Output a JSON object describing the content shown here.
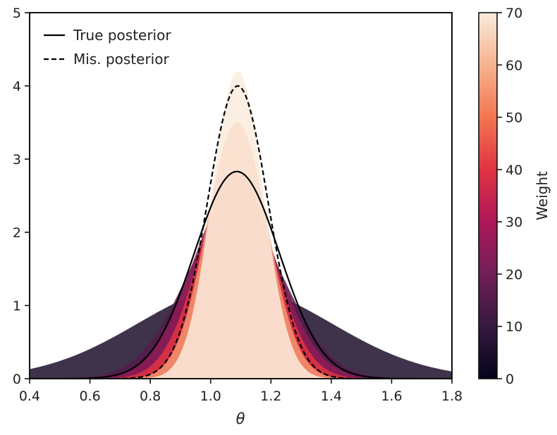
{
  "chart_data": {
    "type": "area",
    "xlabel": "θ",
    "ylabel": "",
    "xlim": [
      0.4,
      1.8
    ],
    "ylim": [
      0,
      5
    ],
    "x_ticks": [
      "0.4",
      "0.6",
      "0.8",
      "1.0",
      "1.2",
      "1.4",
      "1.6",
      "1.8"
    ],
    "y_ticks": [
      "0",
      "1",
      "2",
      "3",
      "4",
      "5"
    ],
    "legend": {
      "placement": "top-left",
      "entries": [
        {
          "label": "True posterior",
          "style": "solid"
        },
        {
          "label": "Mis. posterior",
          "style": "dashed"
        }
      ]
    },
    "lines": [
      {
        "name": "True posterior",
        "style": "solid",
        "mean": 1.087,
        "sd": 0.141,
        "peak": 2.83
      },
      {
        "name": "Mis. posterior",
        "style": "dashed",
        "mean": 1.09,
        "sd": 0.1,
        "peak": 4.0
      }
    ],
    "weighted_densities": [
      {
        "weight": 5,
        "mean": 1.08,
        "sd": 0.32,
        "peak": 1.25
      },
      {
        "weight": 15,
        "mean": 1.08,
        "sd": 0.16,
        "peak": 2.3
      },
      {
        "weight": 25,
        "mean": 1.08,
        "sd": 0.14,
        "peak": 2.6
      },
      {
        "weight": 40,
        "mean": 1.085,
        "sd": 0.12,
        "peak": 2.85
      },
      {
        "weight": 55,
        "mean": 1.088,
        "sd": 0.1,
        "peak": 3.5
      },
      {
        "weight": 70,
        "mean": 1.09,
        "sd": 0.085,
        "peak": 4.2
      }
    ],
    "colorbar": {
      "label": "Weight",
      "range": [
        0,
        70
      ],
      "ticks": [
        "0",
        "10",
        "20",
        "30",
        "40",
        "50",
        "60",
        "70"
      ],
      "colormap": [
        "#03051a",
        "#36193e",
        "#701f57",
        "#ad1759",
        "#e13342",
        "#f37651",
        "#f6b48f",
        "#faebdd"
      ]
    }
  }
}
